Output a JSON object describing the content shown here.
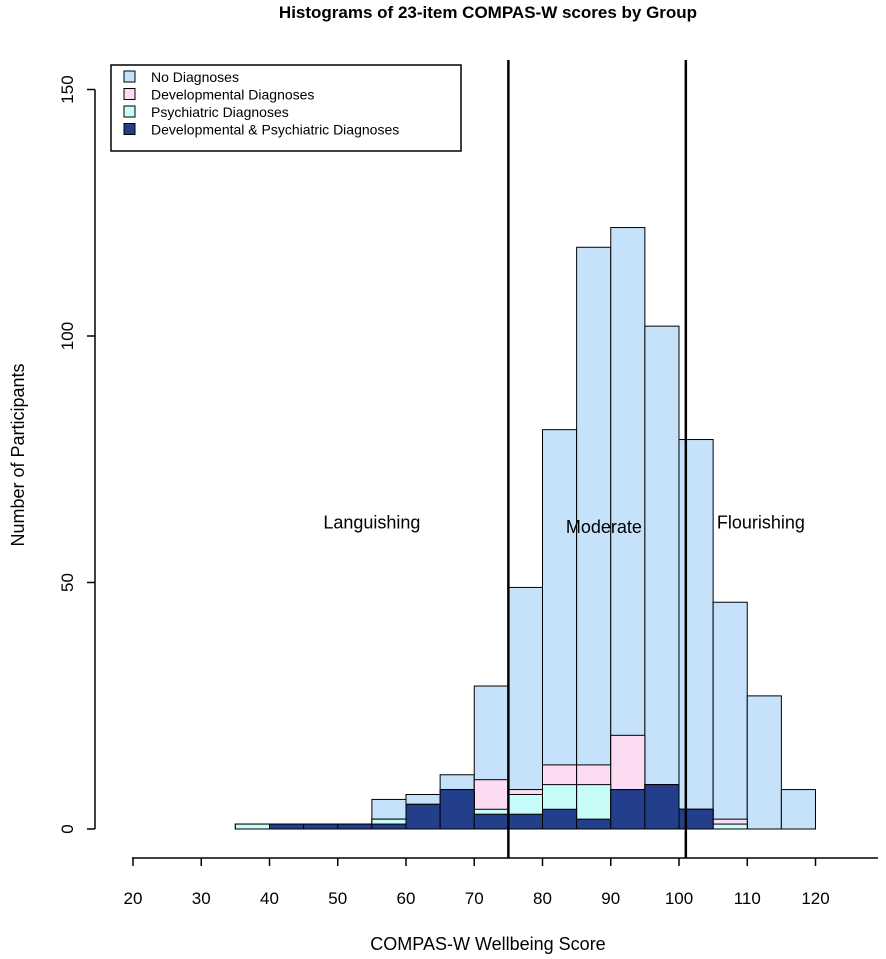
{
  "chart_data": {
    "type": "bar",
    "stacked": true,
    "title": "Histograms of 23-item COMPAS-W scores by Group",
    "xlabel": "COMPAS-W Wellbeing Score",
    "ylabel": "Number of Participants",
    "xlim": [
      20,
      130
    ],
    "ylim": [
      0,
      150
    ],
    "x_ticks": [
      "20",
      "30",
      "40",
      "50",
      "60",
      "70",
      "80",
      "90",
      "100",
      "110",
      "120"
    ],
    "y_ticks": [
      "0",
      "50",
      "100",
      "150"
    ],
    "bin_edges": [
      30,
      35,
      40,
      45,
      50,
      55,
      60,
      65,
      70,
      75,
      80,
      85,
      90,
      95,
      100,
      105,
      110,
      115,
      120
    ],
    "series": [
      {
        "name": "No Diagnoses",
        "color": "#c6e2fa",
        "totals": [
          0,
          1,
          1,
          1,
          1,
          6,
          7,
          11,
          29,
          49,
          81,
          118,
          122,
          102,
          79,
          46,
          27,
          8
        ]
      },
      {
        "name": "Developmental Diagnoses",
        "color": "#fcdcf2",
        "totals": [
          0,
          1,
          1,
          1,
          1,
          2,
          5,
          8,
          10,
          8,
          13,
          13,
          19,
          9,
          4,
          2,
          0,
          0
        ]
      },
      {
        "name": "Psychiatric Diagnoses",
        "color": "#c8fcf8",
        "totals": [
          0,
          1,
          1,
          1,
          1,
          2,
          5,
          8,
          4,
          7,
          9,
          9,
          8,
          9,
          4,
          1,
          0,
          0
        ]
      },
      {
        "name": "Developmental & Psychiatric Diagnoses",
        "color": "#233f8c",
        "totals": [
          0,
          0,
          1,
          1,
          1,
          1,
          5,
          8,
          3,
          3,
          4,
          2,
          8,
          9,
          4,
          0,
          0,
          0
        ]
      }
    ],
    "vertical_lines": [
      75,
      101
    ],
    "annotations": [
      {
        "text": "Languishing",
        "x": 55,
        "y": 61
      },
      {
        "text": "Moderate",
        "x": 89,
        "y": 60
      },
      {
        "text": "Flourishing",
        "x": 112,
        "y": 61
      }
    ],
    "legend_position": "top-left"
  }
}
